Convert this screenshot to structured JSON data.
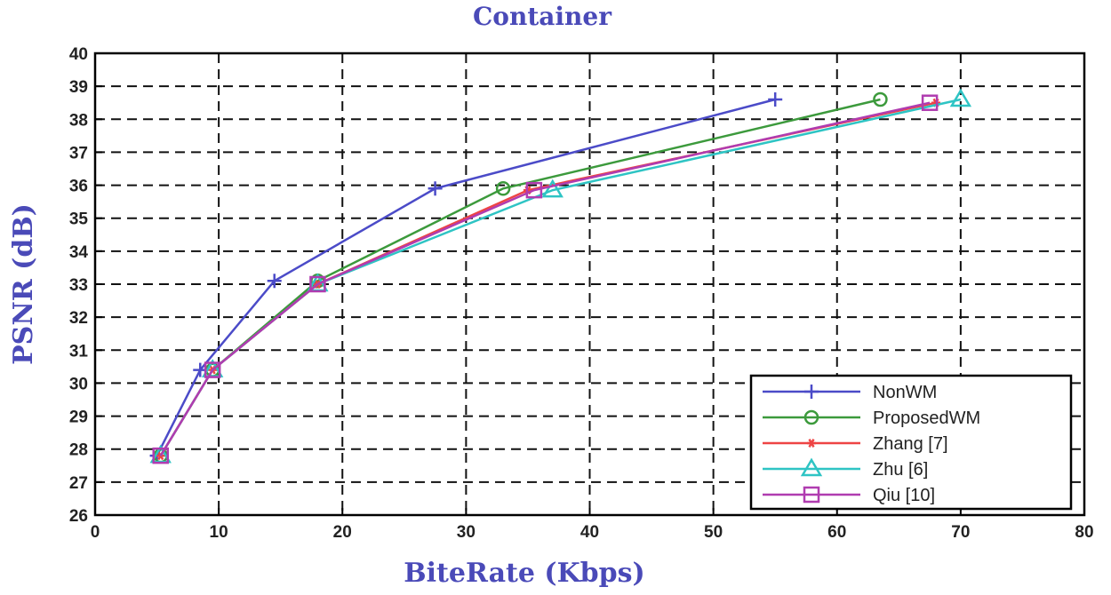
{
  "chart_data": {
    "type": "line",
    "title": "Container",
    "xlabel": "BiteRate (Kbps)",
    "ylabel": "PSNR (dB)",
    "xlim": [
      0,
      80
    ],
    "ylim": [
      26,
      40
    ],
    "xticks": [
      "0",
      "10",
      "20",
      "30",
      "40",
      "50",
      "60",
      "70",
      "80"
    ],
    "yticks": [
      "26",
      "27",
      "28",
      "29",
      "30",
      "31",
      "32",
      "33",
      "34",
      "35",
      "36",
      "37",
      "38",
      "39",
      "40"
    ],
    "grid": true,
    "legend_position": "bottom-right",
    "series": [
      {
        "name": "NonWM",
        "color": "#4b4bc8",
        "marker": "plus",
        "x": [
          5,
          8.5,
          14.5,
          27.5,
          55
        ],
        "y": [
          27.8,
          30.4,
          33.1,
          35.9,
          38.6
        ]
      },
      {
        "name": "ProposedWM",
        "color": "#3c9a3c",
        "marker": "circle",
        "x": [
          5.3,
          9.5,
          18,
          33,
          63.5
        ],
        "y": [
          27.8,
          30.4,
          33.1,
          35.9,
          38.6
        ]
      },
      {
        "name": "Zhang [7]",
        "color": "#ee4444",
        "marker": "star",
        "x": [
          5.3,
          9.5,
          18,
          35,
          68
        ],
        "y": [
          27.8,
          30.4,
          33.0,
          35.85,
          38.5
        ]
      },
      {
        "name": "Zhu [6]",
        "color": "#2ec4c4",
        "marker": "triangle",
        "x": [
          5.3,
          9.5,
          18,
          37,
          70
        ],
        "y": [
          27.8,
          30.4,
          33.0,
          35.85,
          38.6
        ]
      },
      {
        "name": "Qiu [10]",
        "color": "#b03cb0",
        "marker": "square",
        "x": [
          5.3,
          9.5,
          18,
          35.5,
          67.5
        ],
        "y": [
          27.8,
          30.4,
          33.0,
          35.85,
          38.5
        ]
      }
    ]
  }
}
